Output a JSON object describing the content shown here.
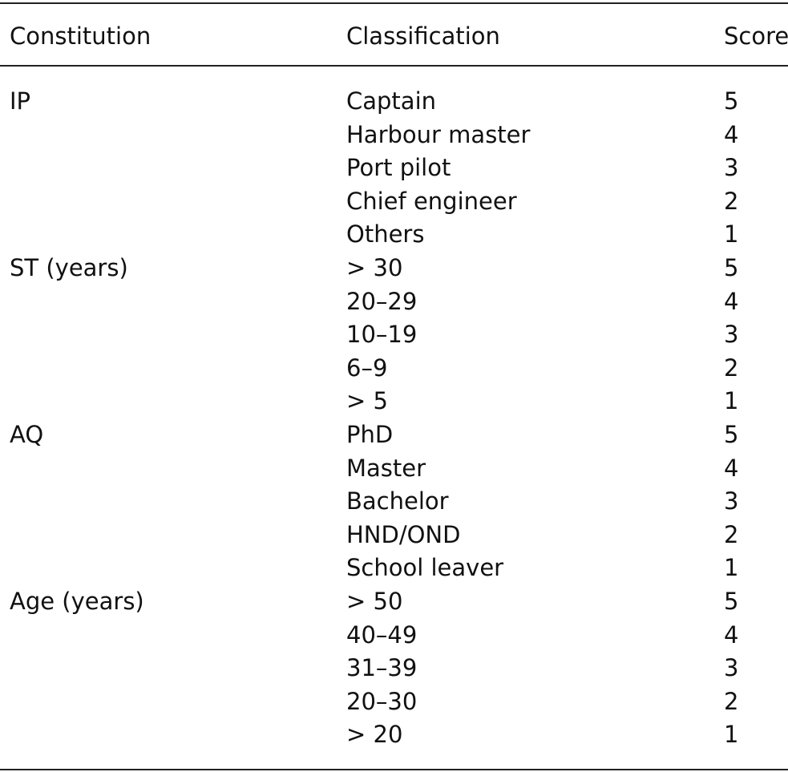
{
  "table": {
    "header": [
      "Constitution",
      "Classification",
      "Score"
    ],
    "groups": [
      {
        "name": "IP",
        "items": [
          {
            "classification": "Captain",
            "score": 5
          },
          {
            "classification": "Harbour master",
            "score": 4
          },
          {
            "classification": "Port pilot",
            "score": 3
          },
          {
            "classification": "Chief engineer",
            "score": 2
          },
          {
            "classification": "Others",
            "score": 1
          }
        ]
      },
      {
        "name": "ST (years)",
        "items": [
          {
            "classification": "> 30",
            "score": 5
          },
          {
            "classification": "20–29",
            "score": 4
          },
          {
            "classification": "10–19",
            "score": 3
          },
          {
            "classification": "6–9",
            "score": 2
          },
          {
            "classification": "> 5",
            "score": 1
          }
        ]
      },
      {
        "name": "AQ",
        "items": [
          {
            "classification": "PhD",
            "score": 5
          },
          {
            "classification": "Master",
            "score": 4
          },
          {
            "classification": "Bachelor",
            "score": 3
          },
          {
            "classification": "HND/OND",
            "score": 2
          },
          {
            "classification": "School leaver",
            "score": 1
          }
        ]
      },
      {
        "name": "Age (years)",
        "items": [
          {
            "classification": "> 50",
            "score": 5
          },
          {
            "classification": "40–49",
            "score": 4
          },
          {
            "classification": "31–39",
            "score": 3
          },
          {
            "classification": "20–30",
            "score": 2
          },
          {
            "classification": "> 20",
            "score": 1
          }
        ]
      }
    ]
  }
}
